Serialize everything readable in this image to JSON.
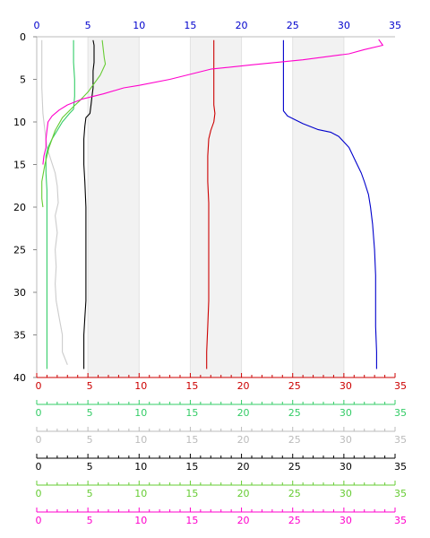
{
  "chart_data": {
    "type": "line",
    "y_axis": {
      "label": "",
      "range": [
        0,
        40
      ],
      "inverted": true,
      "ticks": [
        "0",
        "5",
        "10",
        "15",
        "20",
        "25",
        "30",
        "35",
        "40"
      ],
      "color": "#000000"
    },
    "top_axis": {
      "range": [
        0,
        35
      ],
      "ticks": [
        "0",
        "5",
        "10",
        "15",
        "20",
        "25",
        "30",
        "35"
      ],
      "color": "#0000cc"
    },
    "shaded_bands_x": [
      [
        5,
        10
      ],
      [
        15,
        20
      ],
      [
        25,
        30
      ]
    ],
    "bottom_axes": [
      {
        "id": "red-axis",
        "color": "#cc0000",
        "range": [
          0,
          35
        ],
        "ticks": [
          "0",
          "5",
          "10",
          "15",
          "20",
          "25",
          "30",
          "35"
        ]
      },
      {
        "id": "green-axis",
        "color": "#33cc66",
        "range": [
          0,
          35
        ],
        "ticks": [
          "0",
          "5",
          "10",
          "15",
          "20",
          "25",
          "30",
          "35"
        ]
      },
      {
        "id": "lightgray-axis",
        "color": "#bbbbbb",
        "range": [
          0,
          35
        ],
        "ticks": [
          "0",
          "5",
          "10",
          "15",
          "20",
          "25",
          "30",
          "35"
        ]
      },
      {
        "id": "black-axis",
        "color": "#000000",
        "range": [
          0,
          35
        ],
        "ticks": [
          "0",
          "5",
          "10",
          "15",
          "20",
          "25",
          "30",
          "35"
        ]
      },
      {
        "id": "lime-axis",
        "color": "#66cc33",
        "range": [
          0,
          35
        ],
        "ticks": [
          "0",
          "5",
          "10",
          "15",
          "20",
          "25",
          "30",
          "35"
        ]
      },
      {
        "id": "magenta-axis",
        "color": "#ff00cc",
        "range": [
          0,
          35
        ],
        "ticks": [
          "0",
          "5",
          "10",
          "15",
          "20",
          "25",
          "30",
          "35"
        ]
      }
    ],
    "series": [
      {
        "id": "blue",
        "color": "#0000cc",
        "points": [
          [
            24.1,
            0.4
          ],
          [
            24.1,
            3
          ],
          [
            24.1,
            6
          ],
          [
            24.1,
            8.7
          ],
          [
            24.5,
            9.3
          ],
          [
            26,
            10.2
          ],
          [
            27.5,
            10.9
          ],
          [
            28.7,
            11.2
          ],
          [
            29.5,
            11.7
          ],
          [
            30.5,
            13
          ],
          [
            31.3,
            15
          ],
          [
            31.7,
            16
          ],
          [
            32,
            17
          ],
          [
            32.4,
            18.5
          ],
          [
            32.6,
            20
          ],
          [
            32.8,
            22
          ],
          [
            33,
            25
          ],
          [
            33.1,
            28
          ],
          [
            33.1,
            31
          ],
          [
            33.1,
            34
          ],
          [
            33.2,
            37
          ],
          [
            33.2,
            39
          ]
        ]
      },
      {
        "id": "red",
        "color": "#cc0000",
        "points": [
          [
            17.3,
            0.4
          ],
          [
            17.3,
            3
          ],
          [
            17.3,
            6
          ],
          [
            17.3,
            8
          ],
          [
            17.4,
            9
          ],
          [
            17.3,
            10
          ],
          [
            17,
            11
          ],
          [
            16.8,
            12
          ],
          [
            16.7,
            14
          ],
          [
            16.7,
            17
          ],
          [
            16.8,
            19.5
          ],
          [
            16.8,
            22
          ],
          [
            16.8,
            25
          ],
          [
            16.8,
            28
          ],
          [
            16.8,
            31
          ],
          [
            16.7,
            34
          ],
          [
            16.6,
            37
          ],
          [
            16.6,
            39
          ]
        ]
      },
      {
        "id": "black",
        "color": "#000000",
        "points": [
          [
            5.5,
            0.4
          ],
          [
            5.6,
            1
          ],
          [
            5.6,
            2
          ],
          [
            5.6,
            3
          ],
          [
            5.5,
            4
          ],
          [
            5.5,
            5
          ],
          [
            5.5,
            6
          ],
          [
            5.4,
            7
          ],
          [
            5.3,
            8
          ],
          [
            5.2,
            9
          ],
          [
            4.8,
            9.5
          ],
          [
            4.7,
            10.5
          ],
          [
            4.6,
            12
          ],
          [
            4.6,
            15
          ],
          [
            4.7,
            17
          ],
          [
            4.8,
            20
          ],
          [
            4.8,
            23
          ],
          [
            4.8,
            25
          ],
          [
            4.8,
            28
          ],
          [
            4.8,
            31
          ],
          [
            4.7,
            33
          ],
          [
            4.6,
            35
          ],
          [
            4.6,
            37
          ],
          [
            4.6,
            39
          ]
        ]
      },
      {
        "id": "lightgray",
        "color": "#cccccc",
        "points": [
          [
            0.5,
            0.4
          ],
          [
            0.5,
            3
          ],
          [
            0.5,
            6
          ],
          [
            0.6,
            9
          ],
          [
            0.8,
            11
          ],
          [
            1,
            13
          ],
          [
            1.4,
            14.5
          ],
          [
            1.8,
            16
          ],
          [
            2,
            17.5
          ],
          [
            2.1,
            19.5
          ],
          [
            1.8,
            21
          ],
          [
            2,
            23
          ],
          [
            1.8,
            25
          ],
          [
            1.9,
            27
          ],
          [
            1.8,
            29
          ],
          [
            1.9,
            31
          ],
          [
            2.2,
            33
          ],
          [
            2.5,
            35
          ],
          [
            2.5,
            37
          ],
          [
            3,
            38.5
          ]
        ]
      },
      {
        "id": "green",
        "color": "#33cc66",
        "points": [
          [
            3.6,
            0.4
          ],
          [
            3.6,
            1.5
          ],
          [
            3.6,
            3
          ],
          [
            3.7,
            5
          ],
          [
            3.7,
            7
          ],
          [
            3.6,
            8.5
          ],
          [
            3.2,
            9
          ],
          [
            2.5,
            10
          ],
          [
            2,
            11
          ],
          [
            1.5,
            12
          ],
          [
            1.1,
            13
          ],
          [
            0.9,
            14
          ],
          [
            0.9,
            16
          ],
          [
            1,
            18
          ],
          [
            1,
            20
          ],
          [
            1,
            23
          ],
          [
            1,
            26
          ],
          [
            1,
            29
          ],
          [
            1,
            32
          ],
          [
            1,
            35
          ],
          [
            1,
            37
          ],
          [
            1,
            39
          ]
        ]
      },
      {
        "id": "lime",
        "color": "#66cc33",
        "points": [
          [
            6.4,
            0.4
          ],
          [
            6.5,
            1.5
          ],
          [
            6.6,
            2.5
          ],
          [
            6.7,
            3.2
          ],
          [
            6.2,
            4.5
          ],
          [
            5.6,
            5.5
          ],
          [
            5,
            6.5
          ],
          [
            4.2,
            7.5
          ],
          [
            3.5,
            8.3
          ],
          [
            2.5,
            9.5
          ],
          [
            1.8,
            11
          ],
          [
            1.2,
            13
          ],
          [
            0.8,
            15
          ],
          [
            0.5,
            17
          ],
          [
            0.5,
            19
          ],
          [
            0.6,
            20
          ]
        ]
      },
      {
        "id": "magenta",
        "color": "#ff00cc",
        "points": [
          [
            33.4,
            0.3
          ],
          [
            33.8,
            1
          ],
          [
            32,
            1.5
          ],
          [
            30.5,
            2
          ],
          [
            26,
            2.7
          ],
          [
            21,
            3.3
          ],
          [
            17,
            3.8
          ],
          [
            13,
            5
          ],
          [
            10,
            5.7
          ],
          [
            8.5,
            6
          ],
          [
            6.5,
            6.7
          ],
          [
            4.5,
            7.3
          ],
          [
            3,
            8
          ],
          [
            2.2,
            8.6
          ],
          [
            1.5,
            9.3
          ],
          [
            1.1,
            10
          ],
          [
            1,
            11
          ],
          [
            0.9,
            12
          ],
          [
            0.9,
            13
          ],
          [
            0.7,
            14
          ],
          [
            0.6,
            15
          ]
        ]
      }
    ]
  }
}
